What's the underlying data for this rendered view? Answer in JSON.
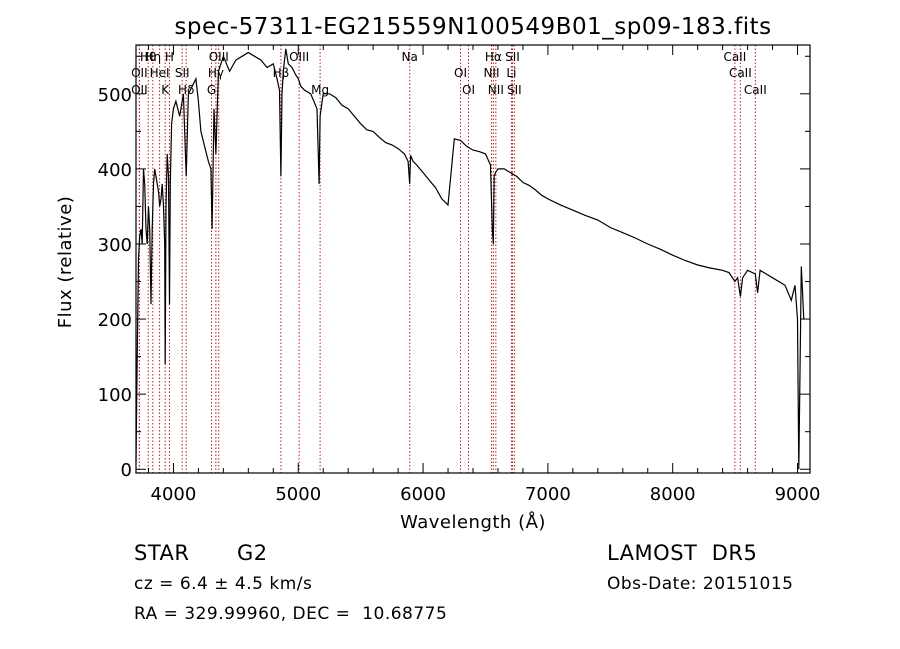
{
  "chart_data": {
    "type": "line",
    "title": "spec-57311-EG215559N100549B01_sp09-183.fits",
    "xlabel": "Wavelength (Å)",
    "ylabel": "Flux (relative)",
    "xlim": [
      3700,
      9100
    ],
    "ylim": [
      -5,
      565
    ],
    "x_ticks": [
      4000,
      5000,
      6000,
      7000,
      8000,
      9000
    ],
    "y_ticks": [
      0,
      100,
      200,
      300,
      400,
      500
    ],
    "grid": false,
    "series": [
      {
        "x": [
          3700,
          3710,
          3720,
          3730,
          3740,
          3750,
          3760,
          3770,
          3780,
          3790,
          3800,
          3810,
          3820,
          3830,
          3840,
          3850,
          3860,
          3870,
          3880,
          3890,
          3900,
          3910,
          3920,
          3930,
          3934,
          3940,
          3950,
          3960,
          3968,
          3975,
          3985,
          4000,
          4020,
          4050,
          4080,
          4102,
          4120,
          4150,
          4180,
          4200,
          4220,
          4250,
          4280,
          4300,
          4310,
          4325,
          4340,
          4360,
          4380,
          4400,
          4450,
          4500,
          4550,
          4600,
          4650,
          4700,
          4750,
          4800,
          4830,
          4850,
          4861,
          4870,
          4880,
          4900,
          4920,
          4950,
          4980,
          5000,
          5020,
          5050,
          5100,
          5150,
          5167,
          5175,
          5183,
          5200,
          5250,
          5300,
          5350,
          5400,
          5450,
          5500,
          5550,
          5600,
          5650,
          5700,
          5750,
          5800,
          5850,
          5880,
          5893,
          5900,
          5920,
          5950,
          6000,
          6050,
          6100,
          6150,
          6200,
          6250,
          6300,
          6350,
          6400,
          6450,
          6500,
          6540,
          6555,
          6563,
          6570,
          6580,
          6600,
          6650,
          6700,
          6750,
          6800,
          6850,
          6900,
          6950,
          7000,
          7100,
          7200,
          7300,
          7400,
          7500,
          7600,
          7700,
          7800,
          7900,
          8000,
          8100,
          8200,
          8300,
          8400,
          8450,
          8498,
          8520,
          8542,
          8560,
          8600,
          8662,
          8680,
          8700,
          8750,
          8800,
          8850,
          8900,
          8950,
          8980,
          9000,
          9010,
          9030,
          9050
        ],
        "y": [
          10,
          150,
          280,
          310,
          320,
          300,
          400,
          380,
          320,
          300,
          350,
          320,
          220,
          320,
          380,
          400,
          390,
          380,
          370,
          350,
          360,
          380,
          350,
          300,
          140,
          350,
          420,
          390,
          220,
          380,
          460,
          480,
          490,
          470,
          500,
          390,
          500,
          510,
          520,
          490,
          450,
          430,
          410,
          400,
          320,
          480,
          420,
          530,
          540,
          550,
          530,
          545,
          550,
          555,
          550,
          545,
          535,
          540,
          520,
          505,
          390,
          500,
          530,
          560,
          540,
          535,
          525,
          520,
          510,
          505,
          500,
          480,
          380,
          470,
          480,
          500,
          500,
          495,
          485,
          480,
          470,
          460,
          452,
          450,
          442,
          435,
          432,
          427,
          420,
          410,
          380,
          418,
          410,
          405,
          395,
          385,
          375,
          360,
          352,
          440,
          438,
          430,
          425,
          423,
          420,
          405,
          320,
          300,
          390,
          395,
          400,
          400,
          395,
          390,
          382,
          378,
          372,
          365,
          360,
          352,
          345,
          338,
          332,
          322,
          315,
          308,
          300,
          293,
          285,
          278,
          272,
          268,
          265,
          262,
          250,
          255,
          230,
          255,
          265,
          260,
          235,
          265,
          260,
          255,
          250,
          245,
          225,
          245,
          200,
          0,
          270,
          200
        ]
      }
    ],
    "annotations": [
      {
        "label": "Hθ",
        "x": 3798
      },
      {
        "label": "OII",
        "x": 3727
      },
      {
        "label": "OII",
        "x": 3727
      },
      {
        "label": "Hη",
        "x": 3835
      },
      {
        "label": "HeI",
        "x": 3889
      },
      {
        "label": "K",
        "x": 3934
      },
      {
        "label": "H",
        "x": 3968
      },
      {
        "label": "SII",
        "x": 4070
      },
      {
        "label": "Hδ",
        "x": 4102
      },
      {
        "label": "OIII",
        "x": 4363
      },
      {
        "label": "Hγ",
        "x": 4340
      },
      {
        "label": "G",
        "x": 4305
      },
      {
        "label": "OIII",
        "x": 5007
      },
      {
        "label": "Hβ",
        "x": 4861
      },
      {
        "label": "Mg",
        "x": 5175
      },
      {
        "label": "Na",
        "x": 5893
      },
      {
        "label": "OI",
        "x": 6300
      },
      {
        "label": "OI",
        "x": 6364
      },
      {
        "label": "Hα",
        "x": 6563
      },
      {
        "label": "NII",
        "x": 6548
      },
      {
        "label": "NII",
        "x": 6583
      },
      {
        "label": "SII",
        "x": 6716
      },
      {
        "label": "Li",
        "x": 6708
      },
      {
        "label": "SII",
        "x": 6731
      },
      {
        "label": "CaII",
        "x": 8498
      },
      {
        "label": "CaII",
        "x": 8542
      },
      {
        "label": "CaII",
        "x": 8662
      }
    ]
  },
  "info": {
    "object_class": "STAR",
    "subclass": "G2",
    "survey": "LAMOST  DR5",
    "cz": "cz = 6.4 ± 4.5 km/s",
    "obs_date": "Obs-Date: 20151015",
    "coords": "RA = 329.99960, DEC =  10.68775"
  },
  "colors": {
    "spectrum": "#000000",
    "line_markers": "#b22222",
    "axes": "#000000",
    "background": "#ffffff"
  }
}
